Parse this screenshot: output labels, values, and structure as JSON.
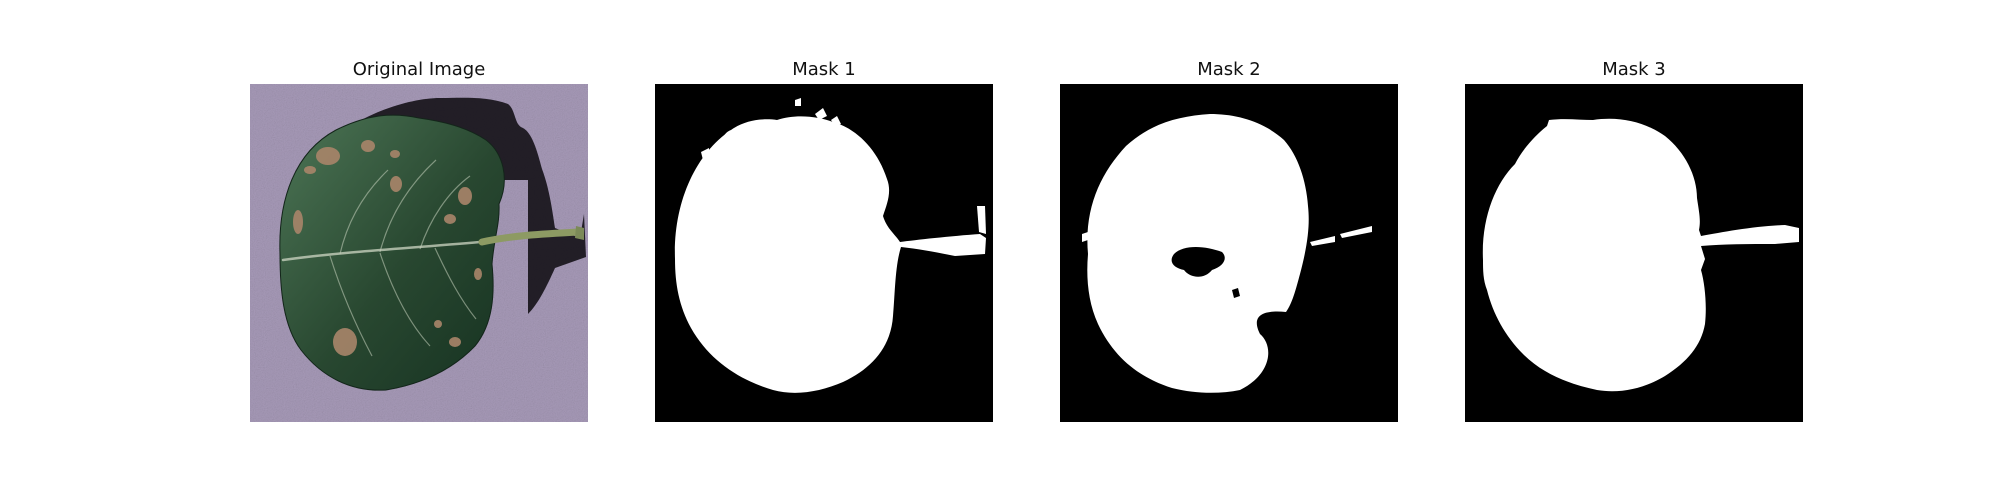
{
  "figure": {
    "panels": [
      {
        "title": "Original Image",
        "kind": "photo"
      },
      {
        "title": "Mask 1",
        "kind": "mask"
      },
      {
        "title": "Mask 2",
        "kind": "mask"
      },
      {
        "title": "Mask 3",
        "kind": "mask"
      }
    ]
  },
  "colors": {
    "page_background": "#ffffff",
    "mask_background": "#000000",
    "mask_foreground": "#ffffff",
    "photo_background": "#a79ab8",
    "leaf_dark": "#203b25",
    "leaf_mid": "#3f6547",
    "lesion": "#a9856a",
    "stem": "#7c8a58",
    "shadow": "#17131a"
  }
}
